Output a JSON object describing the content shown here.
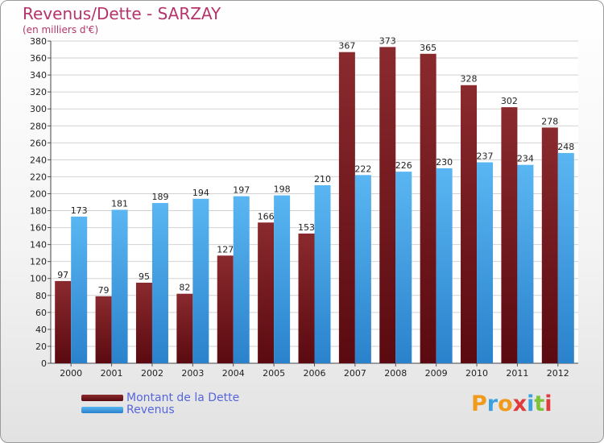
{
  "title": "Revenus/Dette - SARZAY",
  "subtitle": "(en milliers d'€)",
  "logo_text": "Proxiti",
  "colors": {
    "dette_top": "#8a2a2e",
    "dette_bottom": "#5a0a10",
    "revenus_top": "#5ab6f2",
    "revenus_bottom": "#2a82cc",
    "title": "#b5346b",
    "legend_text": "#5566dd"
  },
  "chart_data": {
    "type": "bar",
    "title": "Revenus/Dette - SARZAY",
    "subtitle": "(en milliers d'€)",
    "categories": [
      "2000",
      "2001",
      "2002",
      "2003",
      "2004",
      "2005",
      "2006",
      "2007",
      "2008",
      "2009",
      "2010",
      "2011",
      "2012"
    ],
    "series": [
      {
        "name": "Montant de la Dette",
        "values": [
          97,
          79,
          95,
          82,
          127,
          166,
          153,
          367,
          373,
          365,
          328,
          302,
          278
        ]
      },
      {
        "name": "Revenus",
        "values": [
          173,
          181,
          189,
          194,
          197,
          198,
          210,
          222,
          226,
          230,
          237,
          234,
          248
        ]
      }
    ],
    "ylim": [
      0,
      380
    ],
    "ytick_step": 20,
    "grid": true,
    "legend_position": "bottom-left"
  }
}
